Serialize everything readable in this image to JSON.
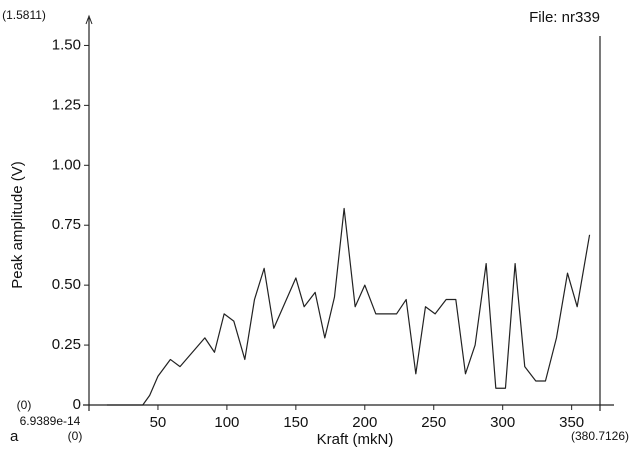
{
  "chart_data": {
    "type": "line",
    "title": "File: nr339",
    "panel_label": "a",
    "x_label": "Kraft (mkN)",
    "y_label": "Peak amplitude (V)",
    "x_start": {
      "value": 6.9389e-14,
      "label": "6.9389e-14"
    },
    "xlim": [
      0,
      380.7126
    ],
    "xlim_labels": [
      "(0)",
      "(380.7126)"
    ],
    "ylim": [
      0,
      1.5811
    ],
    "ylim_labels": [
      "(0)",
      "(1.5811)"
    ],
    "xticks": [
      50,
      100,
      150,
      200,
      250,
      300,
      350
    ],
    "yticks": [
      0,
      0.25,
      {
        "value": 0.5,
        "label": "0.50"
      },
      0.75,
      {
        "value": 1,
        "label": "1.00"
      },
      1.25,
      {
        "value": 1.5,
        "label": "1.50"
      }
    ],
    "x": [
      13,
      39,
      44,
      50,
      59,
      66,
      84,
      91,
      98,
      105,
      113,
      120,
      127,
      134,
      150,
      156,
      164,
      171,
      178,
      185,
      193,
      200,
      208,
      223,
      230,
      237,
      244,
      251,
      259,
      266,
      273,
      280,
      288,
      295,
      302,
      309,
      316,
      324,
      331,
      339,
      347,
      354,
      363
    ],
    "series": [
      {
        "color": "#222222",
        "values": [
          0,
          0,
          0.04,
          0.12,
          0.19,
          0.16,
          0.28,
          0.22,
          0.38,
          0.35,
          0.19,
          0.44,
          0.57,
          0.32,
          0.53,
          0.41,
          0.47,
          0.28,
          0.45,
          0.82,
          0.41,
          0.5,
          0.38,
          0.38,
          0.44,
          0.13,
          0.41,
          0.38,
          0.44,
          0.44,
          0.13,
          0.25,
          0.59,
          0.07,
          0.07,
          0.59,
          0.16,
          0.1,
          0.1,
          0.28,
          0.55,
          0.41,
          0.71
        ]
      }
    ]
  }
}
